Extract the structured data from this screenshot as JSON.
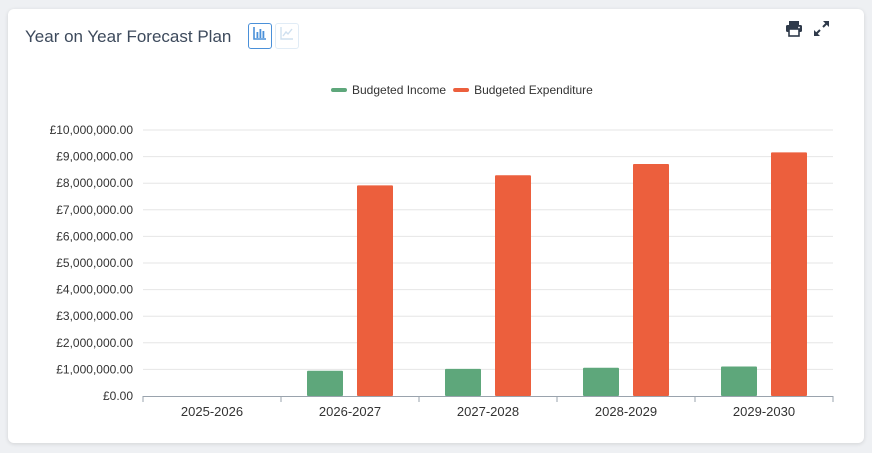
{
  "header": {
    "title": "Year on Year Forecast Plan",
    "icons": [
      "bar-chart-icon",
      "line-chart-icon",
      "print-icon",
      "expand-icon"
    ]
  },
  "chart_data": {
    "type": "bar",
    "categories": [
      "2025-2026",
      "2026-2027",
      "2027-2028",
      "2028-2029",
      "2029-2030"
    ],
    "series": [
      {
        "name": "Budgeted Income",
        "color": "#5ea77b",
        "values": [
          0,
          950000,
          1020000,
          1060000,
          1110000
        ]
      },
      {
        "name": "Budgeted Expenditure",
        "color": "#ec5f3d",
        "values": [
          0,
          7920000,
          8300000,
          8720000,
          9160000
        ]
      }
    ],
    "ylim": [
      0,
      10000000
    ],
    "yticks": [
      "£0.00",
      "£1,000,000.00",
      "£2,000,000.00",
      "£3,000,000.00",
      "£4,000,000.00",
      "£5,000,000.00",
      "£6,000,000.00",
      "£7,000,000.00",
      "£8,000,000.00",
      "£9,000,000.00",
      "£10,000,000.00"
    ],
    "grid": true,
    "legend_position": "top-center"
  }
}
